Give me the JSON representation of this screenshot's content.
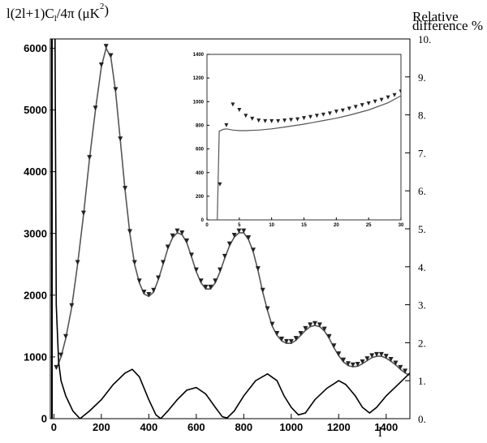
{
  "chart_data": [
    {
      "type": "line",
      "ylabel_parts": [
        "l(2l+1)C",
        "l",
        "/4π (μK",
        "2",
        ")"
      ],
      "y2label": [
        "Relative",
        "difference %"
      ],
      "xlabel": "l",
      "xlim": [
        -15,
        1500
      ],
      "ylim": [
        0,
        6150
      ],
      "y2lim": [
        0,
        10
      ],
      "xticks": [
        0,
        200,
        400,
        600,
        800,
        1000,
        1200,
        1400
      ],
      "yticks": [
        0,
        1000,
        2000,
        3000,
        4000,
        5000,
        6000
      ],
      "y2ticks": [
        {
          "value": 0,
          "label": "0."
        },
        {
          "value": 1,
          "label": "1."
        },
        {
          "value": 2,
          "label": "2."
        },
        {
          "value": 3,
          "label": "3."
        },
        {
          "value": 4,
          "label": "4."
        },
        {
          "value": 5,
          "label": "5."
        },
        {
          "value": 6,
          "label": "6."
        },
        {
          "value": 7,
          "label": "7."
        },
        {
          "value": 8,
          "label": "8."
        },
        {
          "value": 9,
          "label": "9."
        },
        {
          "value": 10,
          "label": "10."
        }
      ],
      "series": [
        {
          "style": "line",
          "color": "#555555",
          "x": [
            10,
            30,
            50,
            75,
            100,
            125,
            150,
            175,
            200,
            220,
            240,
            260,
            280,
            300,
            320,
            340,
            360,
            380,
            400,
            420,
            440,
            460,
            480,
            500,
            520,
            540,
            560,
            580,
            600,
            620,
            640,
            660,
            680,
            700,
            720,
            740,
            760,
            780,
            800,
            820,
            840,
            860,
            880,
            900,
            920,
            940,
            960,
            980,
            1000,
            1020,
            1040,
            1060,
            1080,
            1100,
            1120,
            1140,
            1160,
            1180,
            1200,
            1220,
            1240,
            1260,
            1280,
            1300,
            1320,
            1340,
            1360,
            1380,
            1400,
            1420,
            1440,
            1460,
            1480,
            1500
          ],
          "values": [
            800,
            1000,
            1300,
            1800,
            2500,
            3300,
            4200,
            5000,
            5700,
            6000,
            5850,
            5300,
            4500,
            3700,
            3000,
            2500,
            2200,
            2020,
            1980,
            2050,
            2250,
            2500,
            2750,
            2930,
            3010,
            2980,
            2850,
            2620,
            2380,
            2200,
            2100,
            2100,
            2200,
            2380,
            2600,
            2800,
            2940,
            3010,
            3010,
            2900,
            2700,
            2400,
            2050,
            1750,
            1500,
            1350,
            1260,
            1220,
            1220,
            1270,
            1350,
            1430,
            1490,
            1510,
            1490,
            1420,
            1300,
            1150,
            1020,
            920,
            860,
            840,
            850,
            890,
            940,
            990,
            1010,
            1010,
            980,
            930,
            870,
            800,
            740,
            700
          ]
        },
        {
          "style": "markers",
          "color": "#222222",
          "x": [
            10,
            30,
            50,
            75,
            100,
            125,
            150,
            175,
            200,
            220,
            240,
            260,
            280,
            300,
            320,
            340,
            360,
            380,
            400,
            420,
            440,
            460,
            480,
            500,
            520,
            540,
            560,
            580,
            600,
            620,
            640,
            660,
            680,
            700,
            720,
            740,
            760,
            780,
            800,
            820,
            840,
            860,
            880,
            900,
            920,
            940,
            960,
            980,
            1000,
            1020,
            1040,
            1060,
            1080,
            1100,
            1120,
            1140,
            1160,
            1180,
            1200,
            1220,
            1240,
            1260,
            1280,
            1300,
            1320,
            1340,
            1360,
            1380,
            1400,
            1420,
            1440,
            1460,
            1480
          ],
          "values": [
            830,
            1030,
            1330,
            1830,
            2530,
            3330,
            4230,
            5030,
            5730,
            6030,
            5880,
            5330,
            4530,
            3730,
            3030,
            2530,
            2230,
            2050,
            2010,
            2080,
            2280,
            2530,
            2780,
            2960,
            3040,
            3010,
            2880,
            2650,
            2410,
            2230,
            2130,
            2130,
            2230,
            2410,
            2630,
            2830,
            2970,
            3040,
            3040,
            2930,
            2730,
            2430,
            2080,
            1780,
            1530,
            1380,
            1290,
            1250,
            1250,
            1300,
            1380,
            1460,
            1520,
            1540,
            1520,
            1450,
            1330,
            1180,
            1050,
            950,
            890,
            870,
            880,
            920,
            970,
            1020,
            1040,
            1040,
            1010,
            960,
            900,
            830,
            770
          ]
        },
        {
          "style": "line",
          "color": "#000000",
          "axis": "y2",
          "x": [
            2,
            5,
            10,
            20,
            30,
            50,
            80,
            110,
            150,
            200,
            250,
            300,
            330,
            360,
            400,
            430,
            450,
            480,
            520,
            560,
            600,
            640,
            680,
            710,
            730,
            760,
            800,
            850,
            900,
            940,
            970,
            1000,
            1030,
            1060,
            1100,
            1150,
            1200,
            1230,
            1270,
            1300,
            1330,
            1360,
            1400,
            1450,
            1500
          ],
          "values": [
            12,
            10,
            3,
            1.5,
            1.0,
            0.6,
            0.2,
            0.0,
            0.2,
            0.5,
            0.9,
            1.2,
            1.3,
            1.1,
            0.5,
            0.1,
            0.0,
            0.2,
            0.5,
            0.75,
            0.82,
            0.65,
            0.3,
            0.05,
            0.02,
            0.2,
            0.6,
            1.0,
            1.18,
            1.0,
            0.6,
            0.3,
            0.1,
            0.15,
            0.5,
            0.8,
            1.0,
            0.9,
            0.6,
            0.3,
            0.15,
            0.3,
            0.6,
            0.9,
            1.2
          ]
        }
      ]
    },
    {
      "type": "line",
      "xlim": [
        0,
        30
      ],
      "ylim": [
        0,
        1400
      ],
      "xticks": [
        0,
        5,
        10,
        15,
        20,
        25,
        30
      ],
      "yticks": [
        0,
        200,
        400,
        600,
        800,
        1000,
        1200,
        1400
      ],
      "series": [
        {
          "style": "line",
          "color": "#555555",
          "x": [
            1.6,
            1.9,
            2.5,
            3,
            4,
            5,
            6,
            8,
            10,
            12,
            15,
            18,
            20,
            22,
            25,
            28,
            30
          ],
          "values": [
            0,
            750,
            765,
            770,
            760,
            755,
            755,
            760,
            770,
            785,
            810,
            840,
            860,
            885,
            930,
            990,
            1050
          ]
        },
        {
          "style": "markers",
          "color": "#222222",
          "x": [
            2,
            3,
            4,
            5,
            6,
            7,
            8,
            9,
            10,
            11,
            12,
            13,
            14,
            15,
            16,
            17,
            18,
            19,
            20,
            21,
            22,
            23,
            24,
            25,
            26,
            27,
            28,
            29,
            30
          ],
          "values": [
            300,
            800,
            975,
            930,
            880,
            855,
            840,
            835,
            835,
            835,
            840,
            845,
            850,
            860,
            870,
            880,
            890,
            900,
            915,
            925,
            940,
            955,
            970,
            985,
            1000,
            1015,
            1035,
            1055,
            1085
          ]
        }
      ]
    }
  ]
}
